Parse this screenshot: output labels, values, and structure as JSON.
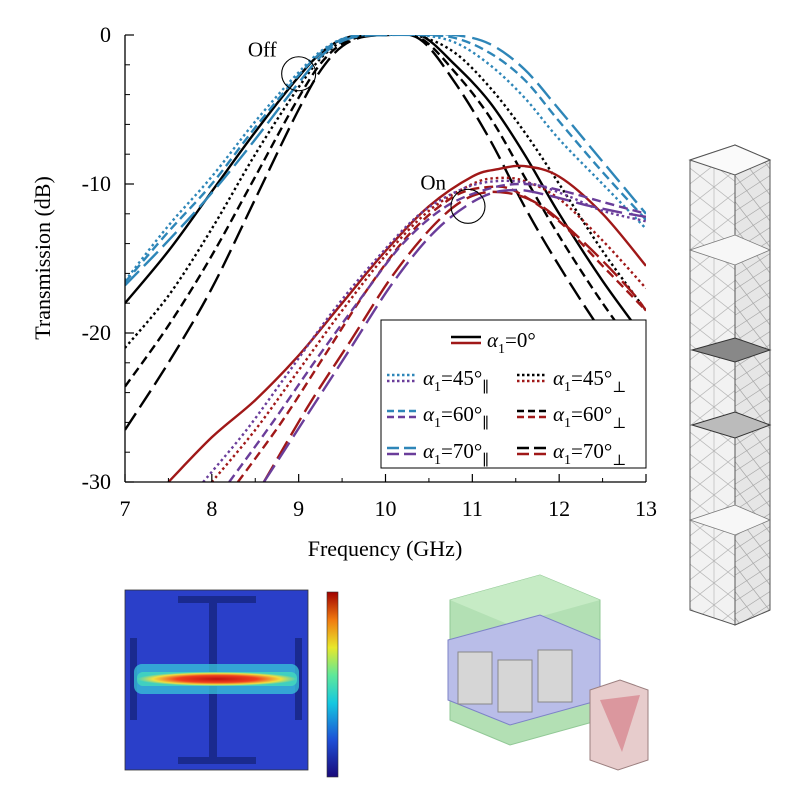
{
  "chart_data": {
    "type": "line",
    "xlabel": "Frequency (GHz)",
    "ylabel": "Transmission (dB)",
    "xlim": [
      7,
      13
    ],
    "ylim": [
      -30,
      0
    ],
    "xticks": [
      "7",
      "8",
      "9",
      "10",
      "11",
      "12",
      "13"
    ],
    "yticks": [
      "0",
      "-10",
      "-20",
      "-30"
    ],
    "grid": false,
    "legend_position": "lower-right",
    "annotations": [
      {
        "text": "Off",
        "x": 9.0,
        "y": -2.6
      },
      {
        "text": "On",
        "x": 10.95,
        "y": -11.5
      }
    ],
    "legend": {
      "symbol": "α",
      "subscript": "1",
      "rows": [
        {
          "entries": [
            {
              "value": "=0°",
              "mark": "",
              "colors": [
                "#000000",
                "#a01818"
              ],
              "dash": "solid"
            }
          ]
        },
        {
          "entries": [
            {
              "value": "=45°",
              "mark": "∥",
              "colors": [
                "#2e86b8",
                "#6a3d9a"
              ],
              "dash": "dot"
            },
            {
              "value": "=45°",
              "mark": "⊥",
              "colors": [
                "#000000",
                "#a01818"
              ],
              "dash": "dot"
            }
          ]
        },
        {
          "entries": [
            {
              "value": "=60°",
              "mark": "∥",
              "colors": [
                "#2e86b8",
                "#6a3d9a"
              ],
              "dash": "dash"
            },
            {
              "value": "=60°",
              "mark": "⊥",
              "colors": [
                "#000000",
                "#a01818"
              ],
              "dash": "dash"
            }
          ]
        },
        {
          "entries": [
            {
              "value": "=70°",
              "mark": "∥",
              "colors": [
                "#2e86b8",
                "#6a3d9a"
              ],
              "dash": "longdash"
            },
            {
              "value": "=70°",
              "mark": "⊥",
              "colors": [
                "#000000",
                "#a01818"
              ],
              "dash": "longdash"
            }
          ]
        }
      ]
    },
    "series": [
      {
        "state": "Off",
        "color": "#000000",
        "dash": "solid",
        "x": [
          7,
          7.5,
          8,
          8.5,
          9,
          9.3,
          9.6,
          10,
          10.4,
          10.8,
          11.2,
          11.6,
          12,
          12.5,
          13
        ],
        "y": [
          -18,
          -14.5,
          -10.5,
          -6.5,
          -2.8,
          -1.0,
          -0.1,
          0,
          0,
          -2.0,
          -4.5,
          -8.0,
          -12.0,
          -16.5,
          -20.5
        ]
      },
      {
        "state": "Off",
        "color": "#000000",
        "dash": "dot",
        "x": [
          7,
          7.5,
          8,
          8.5,
          9,
          9.3,
          9.6,
          10,
          10.4,
          10.8,
          11.2,
          11.6,
          12,
          12.5,
          13
        ],
        "y": [
          -21,
          -17.5,
          -13,
          -8,
          -3.5,
          -1.3,
          -0.2,
          0,
          -0.1,
          -1.2,
          -3.5,
          -6.5,
          -10.0,
          -14.5,
          -18.5
        ]
      },
      {
        "state": "Off",
        "color": "#000000",
        "dash": "dash",
        "x": [
          7,
          7.5,
          8,
          8.5,
          9,
          9.3,
          9.6,
          10,
          10.4,
          10.8,
          11.2,
          11.6,
          12,
          12.5,
          13
        ],
        "y": [
          -23.6,
          -19.5,
          -14.8,
          -9.5,
          -4.2,
          -1.6,
          -0.3,
          0,
          -0.2,
          -2.5,
          -5.5,
          -9.5,
          -13.5,
          -18.0,
          -22.0
        ]
      },
      {
        "state": "Off",
        "color": "#000000",
        "dash": "longdash",
        "x": [
          7,
          7.5,
          8,
          8.5,
          9,
          9.3,
          9.6,
          10,
          10.4,
          10.8,
          11.2,
          11.6,
          12,
          12.5,
          13
        ],
        "y": [
          -26.5,
          -22,
          -17,
          -11,
          -5,
          -2,
          -0.4,
          0,
          -0.3,
          -3.2,
          -7.0,
          -11.5,
          -15.5,
          -20.0,
          -24.0
        ]
      },
      {
        "state": "Off",
        "color": "#2e86b8",
        "dash": "dot",
        "x": [
          7,
          7.5,
          8,
          8.5,
          9,
          9.3,
          9.6,
          10,
          10.4,
          10.8,
          11.2,
          11.6,
          12,
          12.5,
          13
        ],
        "y": [
          -16.5,
          -12.8,
          -9.5,
          -5.8,
          -2.5,
          -0.9,
          -0.1,
          0,
          0,
          -0.5,
          -2.0,
          -4.2,
          -7.0,
          -10.0,
          -13.0
        ]
      },
      {
        "state": "Off",
        "color": "#2e86b8",
        "dash": "dash",
        "x": [
          7,
          7.5,
          8,
          8.5,
          9,
          9.3,
          9.6,
          10,
          10.4,
          10.8,
          11.2,
          11.6,
          12,
          12.5,
          13
        ],
        "y": [
          -16.6,
          -13.2,
          -10,
          -6.2,
          -2.7,
          -1.0,
          -0.1,
          0,
          0,
          -0.2,
          -1.2,
          -3.0,
          -5.8,
          -9.2,
          -12.4
        ]
      },
      {
        "state": "Off",
        "color": "#2e86b8",
        "dash": "longdash",
        "x": [
          7,
          7.5,
          8,
          8.5,
          9,
          9.3,
          9.6,
          10,
          10.4,
          10.8,
          11.2,
          11.6,
          12,
          12.5,
          13
        ],
        "y": [
          -16.8,
          -13.8,
          -10.6,
          -7.0,
          -3.2,
          -1.2,
          -0.2,
          0,
          0,
          0,
          -0.6,
          -2.3,
          -5.0,
          -8.5,
          -12.0
        ]
      },
      {
        "state": "On",
        "color": "#a01818",
        "dash": "solid",
        "x": [
          7.5,
          8,
          8.5,
          9,
          9.5,
          10,
          10.5,
          11,
          11.3,
          11.6,
          12,
          12.5,
          13
        ],
        "y": [
          -30,
          -27,
          -24.5,
          -21.5,
          -18.0,
          -14.5,
          -11.5,
          -9.5,
          -9.0,
          -8.8,
          -9.5,
          -12.0,
          -15.5
        ]
      },
      {
        "state": "On",
        "color": "#a01818",
        "dash": "dot",
        "x": [
          8,
          8.5,
          9,
          9.5,
          10,
          10.5,
          11,
          11.3,
          11.6,
          12,
          12.5,
          13
        ],
        "y": [
          -30,
          -26.5,
          -22.5,
          -18.5,
          -14.8,
          -11.8,
          -10.0,
          -9.6,
          -9.8,
          -11.0,
          -13.8,
          -17.0
        ]
      },
      {
        "state": "On",
        "color": "#a01818",
        "dash": "dash",
        "x": [
          8.3,
          8.8,
          9.3,
          9.8,
          10.3,
          10.8,
          11.2,
          11.5,
          12,
          12.5,
          13
        ],
        "y": [
          -30,
          -26,
          -21.5,
          -17,
          -13.2,
          -10.8,
          -10.2,
          -10.5,
          -12.5,
          -15.5,
          -18.5
        ]
      },
      {
        "state": "On",
        "color": "#a01818",
        "dash": "longdash",
        "x": [
          8.6,
          9.1,
          9.6,
          10.1,
          10.6,
          11,
          11.4,
          11.8,
          12.3,
          12.8,
          13
        ],
        "y": [
          -30,
          -25,
          -20.5,
          -16,
          -12.5,
          -10.8,
          -10.6,
          -11.5,
          -14.0,
          -17.0,
          -18.5
        ]
      },
      {
        "state": "On",
        "color": "#6a3d9a",
        "dash": "dot",
        "x": [
          7.9,
          8.4,
          8.9,
          9.4,
          9.9,
          10.4,
          10.9,
          11.3,
          11.7,
          12.1,
          12.5,
          13
        ],
        "y": [
          -30,
          -26.5,
          -22.5,
          -18.5,
          -15.0,
          -12.0,
          -10.3,
          -9.8,
          -10.0,
          -10.8,
          -11.8,
          -12.5
        ]
      },
      {
        "state": "On",
        "color": "#6a3d9a",
        "dash": "dash",
        "x": [
          8.2,
          8.7,
          9.2,
          9.7,
          10.2,
          10.7,
          11.2,
          11.6,
          12,
          12.5,
          13
        ],
        "y": [
          -30,
          -26,
          -21.8,
          -17.8,
          -14.0,
          -11.5,
          -10.3,
          -10.0,
          -10.4,
          -11.2,
          -12.0
        ]
      },
      {
        "state": "On",
        "color": "#6a3d9a",
        "dash": "longdash",
        "x": [
          8.6,
          9.1,
          9.6,
          10.1,
          10.6,
          11.1,
          11.5,
          11.9,
          12.3,
          12.7,
          13
        ],
        "y": [
          -30,
          -25.5,
          -21,
          -16.5,
          -13.0,
          -10.9,
          -10.4,
          -10.8,
          -11.4,
          -11.9,
          -12.2
        ]
      }
    ]
  },
  "schematics": {
    "field_map": {
      "name": "field-distribution-map"
    },
    "colorbar": {
      "name": "colorbar"
    },
    "unit_cell": {
      "name": "unit-cell-3d-model"
    },
    "mesh": {
      "name": "simulation-mesh-column"
    }
  }
}
